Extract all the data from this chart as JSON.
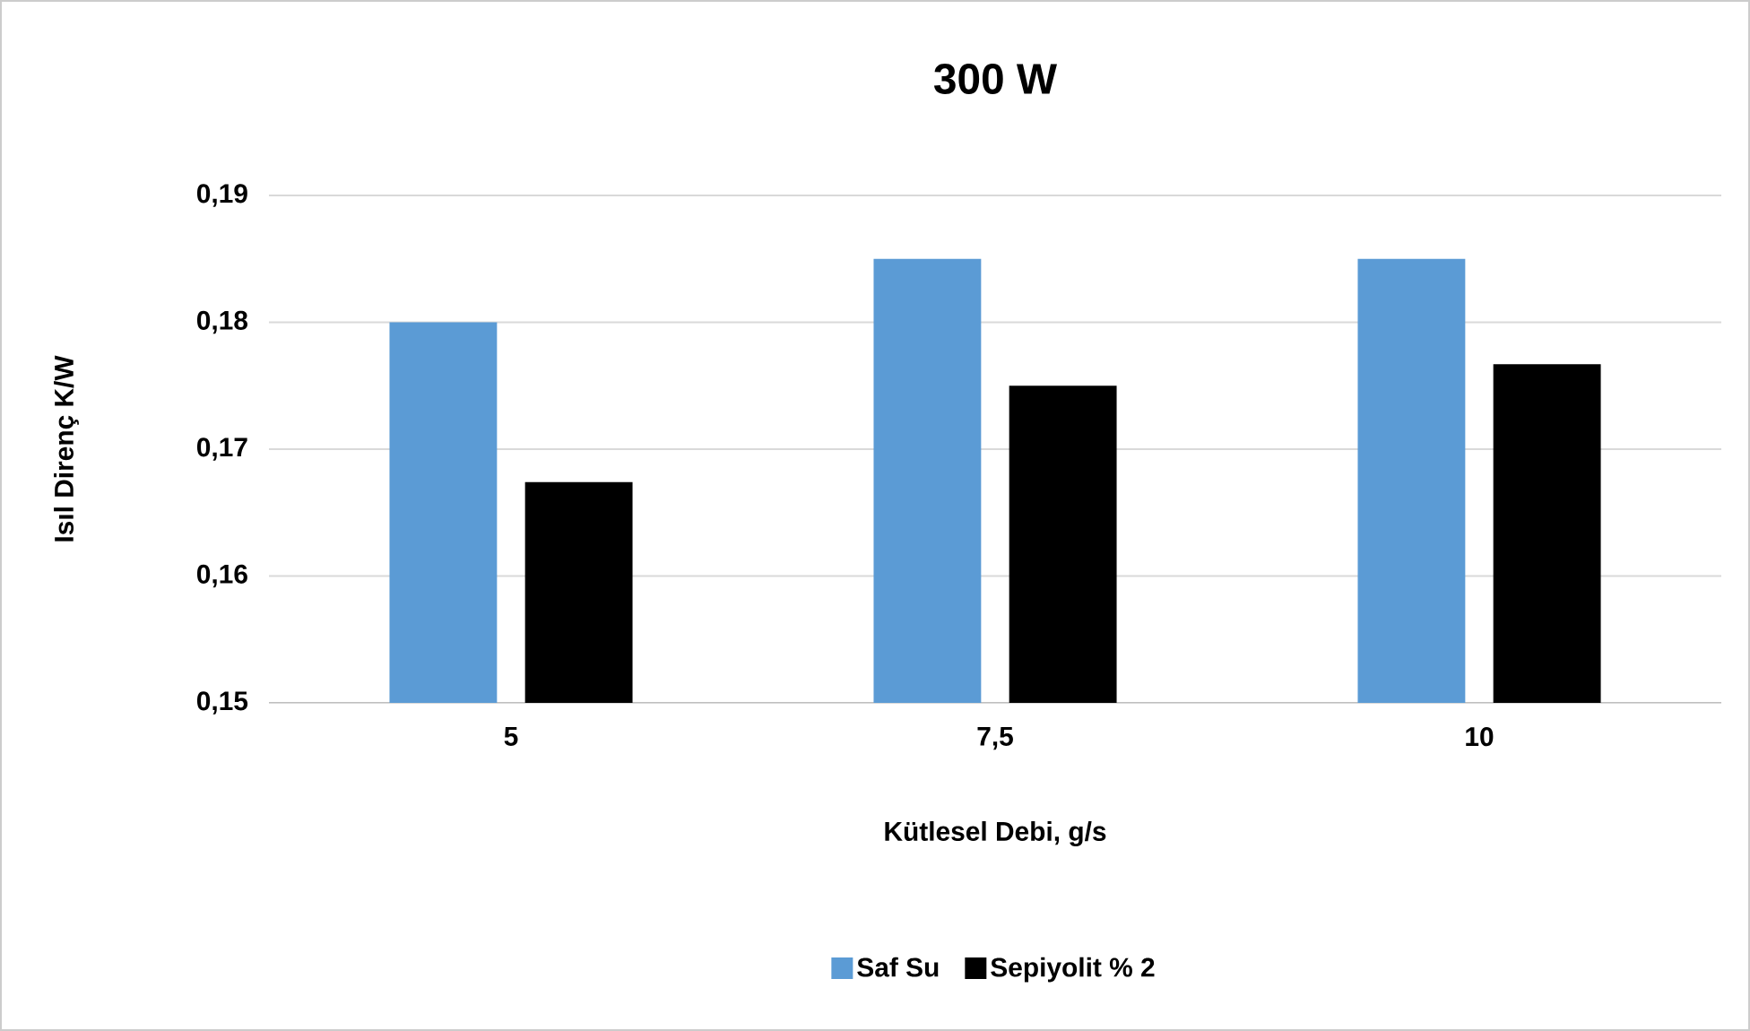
{
  "chart_data": {
    "type": "bar",
    "title": "300 W",
    "xlabel": "Kütlesel Debi, g/s",
    "ylabel": "Isıl Direnç K/W",
    "categories": [
      "5",
      "7,5",
      "10"
    ],
    "series": [
      {
        "name": "Saf Su",
        "color": "#5b9bd5",
        "values": [
          0.18,
          0.185,
          0.185
        ]
      },
      {
        "name": "Sepiyolit % 2",
        "color": "#000000",
        "values": [
          0.1674,
          0.175,
          0.1767
        ]
      }
    ],
    "ylim": [
      0.15,
      0.19
    ],
    "yticks": [
      {
        "value": 0.15,
        "label": "0,15"
      },
      {
        "value": 0.16,
        "label": "0,16"
      },
      {
        "value": 0.17,
        "label": "0,17"
      },
      {
        "value": 0.18,
        "label": "0,18"
      },
      {
        "value": 0.19,
        "label": "0,19"
      }
    ],
    "grid": "y",
    "legend": "bottom"
  }
}
